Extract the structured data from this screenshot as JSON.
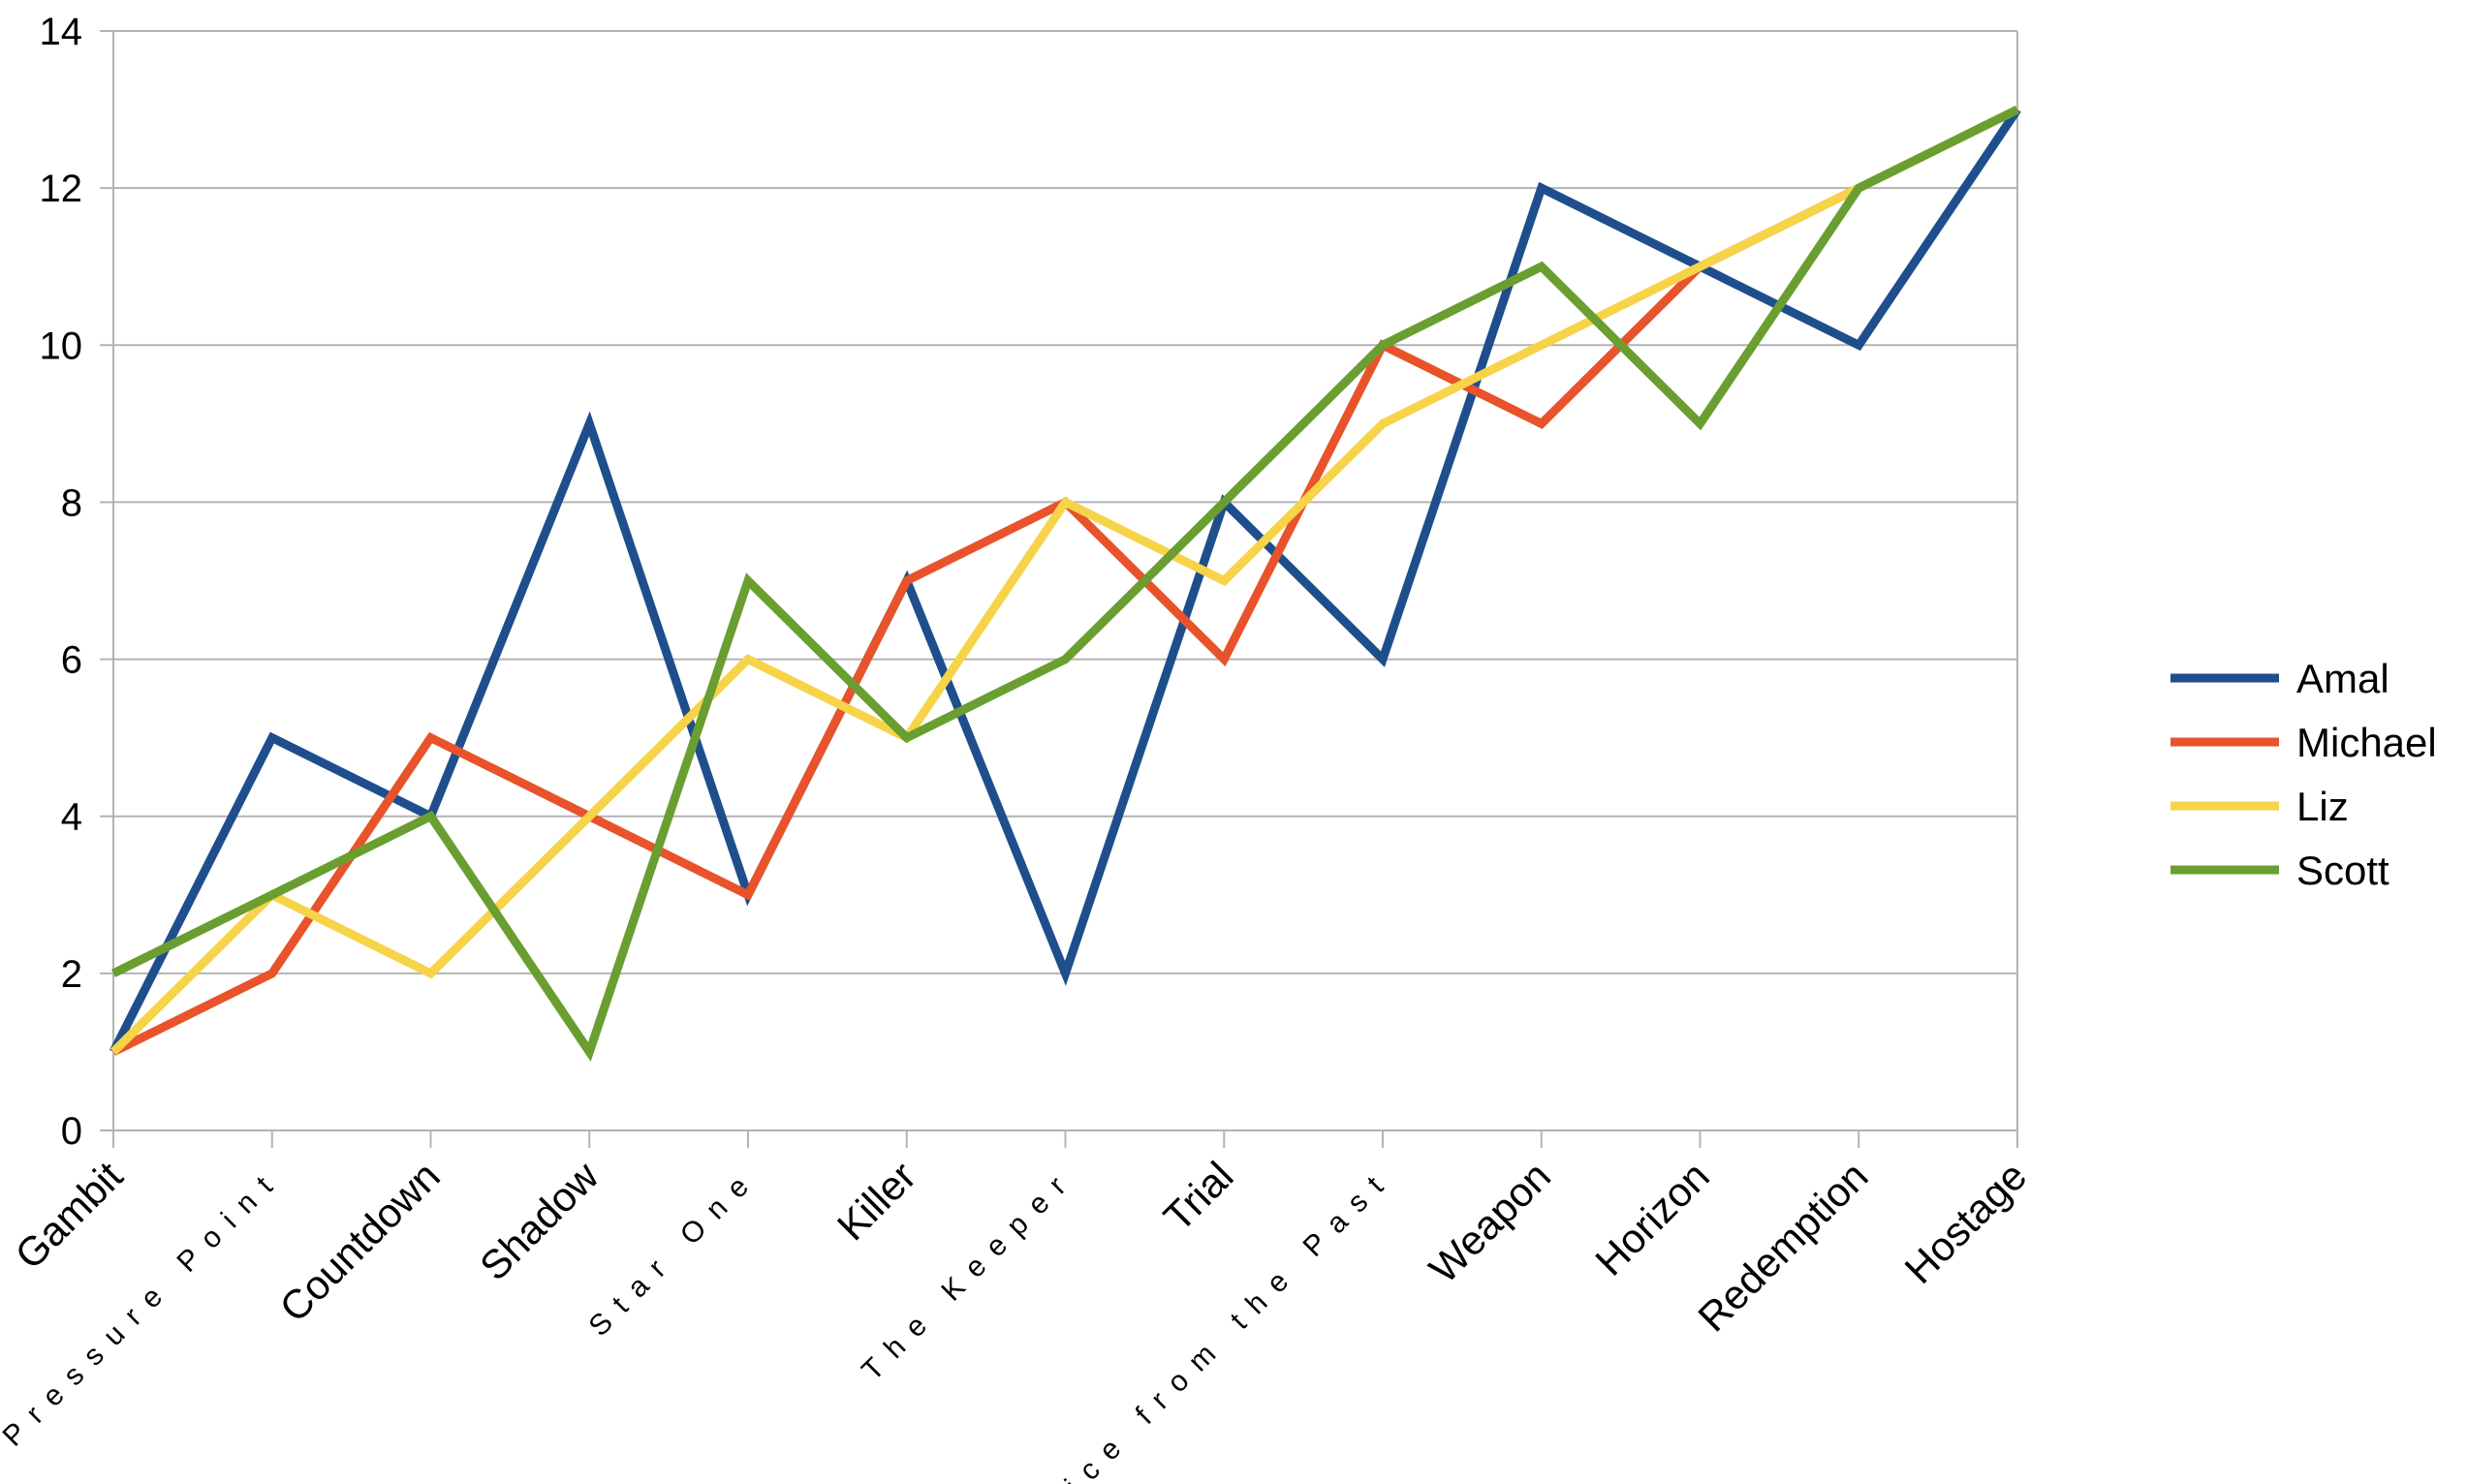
{
  "chart_data": {
    "type": "line",
    "title": "",
    "xlabel": "",
    "ylabel": "",
    "categories": [
      "Gambit",
      "Pressure Point",
      "Countdown",
      "Shadow",
      "Star One",
      "Killer",
      "The Keeper",
      "Trial",
      "Voice from the Past",
      "Weapon",
      "Horizon",
      "Redemption",
      "Hostage"
    ],
    "compressed_labels": [
      "Pressure Point",
      "Star One",
      "The Keeper",
      "Voice from the Past"
    ],
    "ylim": [
      0,
      14
    ],
    "yticks": [
      0,
      2,
      4,
      6,
      8,
      10,
      12,
      14
    ],
    "grid": true,
    "legend_position": "right",
    "series": [
      {
        "name": "Amal",
        "color": "#1f4e8c",
        "values": [
          1,
          5,
          4,
          9,
          3,
          7,
          2,
          8,
          6,
          12,
          11,
          10,
          13
        ]
      },
      {
        "name": "Michael",
        "color": "#e8532b",
        "values": [
          1,
          2,
          5,
          4,
          3,
          7,
          8,
          6,
          10,
          9,
          11,
          12,
          13
        ]
      },
      {
        "name": "Liz",
        "color": "#f7d349",
        "values": [
          1,
          3,
          2,
          4,
          6,
          5,
          8,
          7,
          9,
          10,
          11,
          12,
          13
        ]
      },
      {
        "name": "Scott",
        "color": "#6a9e31",
        "values": [
          2,
          3,
          4,
          1,
          7,
          5,
          6,
          8,
          10,
          11,
          9,
          12,
          13
        ]
      }
    ]
  }
}
